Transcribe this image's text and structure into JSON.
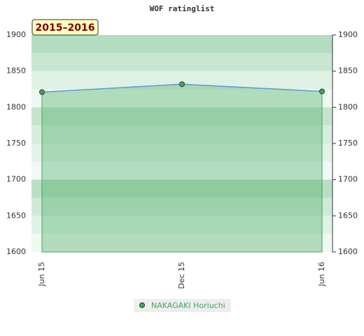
{
  "chart_data": {
    "type": "area",
    "title": "WOF ratinglist",
    "annotation": "2015–2016",
    "categories": [
      "Jun 15",
      "Dec 15",
      "Jun 16"
    ],
    "series": [
      {
        "name": "NAKAGAKI Horiuchi",
        "color": "#3fa85a",
        "values": [
          1821,
          1832,
          1822
        ]
      }
    ],
    "ylim": [
      1600,
      1900
    ],
    "yticks": [
      1600,
      1650,
      1700,
      1750,
      1800,
      1850,
      1900
    ],
    "grid": false
  }
}
